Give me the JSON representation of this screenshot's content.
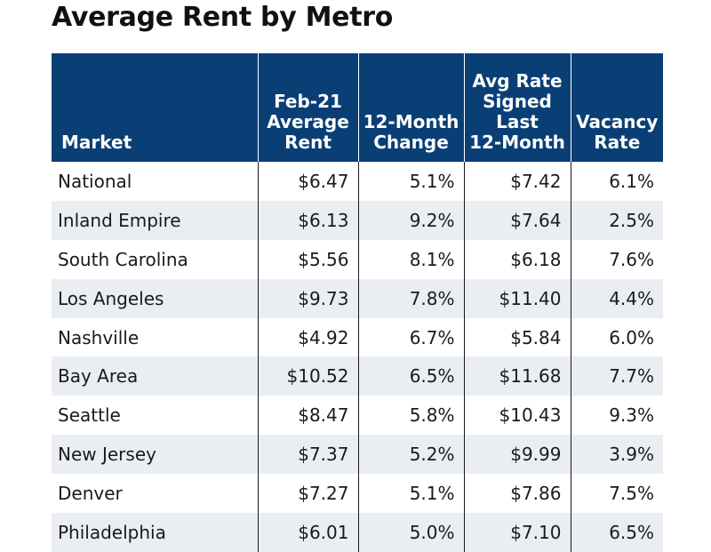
{
  "chart_data": {
    "type": "table",
    "title": "Average Rent by Metro",
    "columns": [
      "Market",
      "Feb-21\nAverage\nRent",
      "12-Month\nChange",
      "Avg Rate\nSigned\nLast\n12-Month",
      "Vacancy\nRate"
    ],
    "rows": [
      [
        "National",
        "$6.47",
        "5.1%",
        "$7.42",
        "6.1%"
      ],
      [
        "Inland Empire",
        "$6.13",
        "9.2%",
        "$7.64",
        "2.5%"
      ],
      [
        "South Carolina",
        "$5.56",
        "8.1%",
        "$6.18",
        "7.6%"
      ],
      [
        "Los Angeles",
        "$9.73",
        "7.8%",
        "$11.40",
        "4.4%"
      ],
      [
        "Nashville",
        "$4.92",
        "6.7%",
        "$5.84",
        "6.0%"
      ],
      [
        "Bay Area",
        "$10.52",
        "6.5%",
        "$11.68",
        "7.7%"
      ],
      [
        "Seattle",
        "$8.47",
        "5.8%",
        "$10.43",
        "9.3%"
      ],
      [
        "New Jersey",
        "$7.37",
        "5.2%",
        "$9.99",
        "3.9%"
      ],
      [
        "Denver",
        "$7.27",
        "5.1%",
        "$7.86",
        "7.5%"
      ],
      [
        "Philadelphia",
        "$6.01",
        "5.0%",
        "$7.10",
        "6.5%"
      ]
    ]
  },
  "colors": {
    "header_background": "#0a3f76",
    "header_text": "#ffffff",
    "striped_row": "#eaeef3"
  }
}
